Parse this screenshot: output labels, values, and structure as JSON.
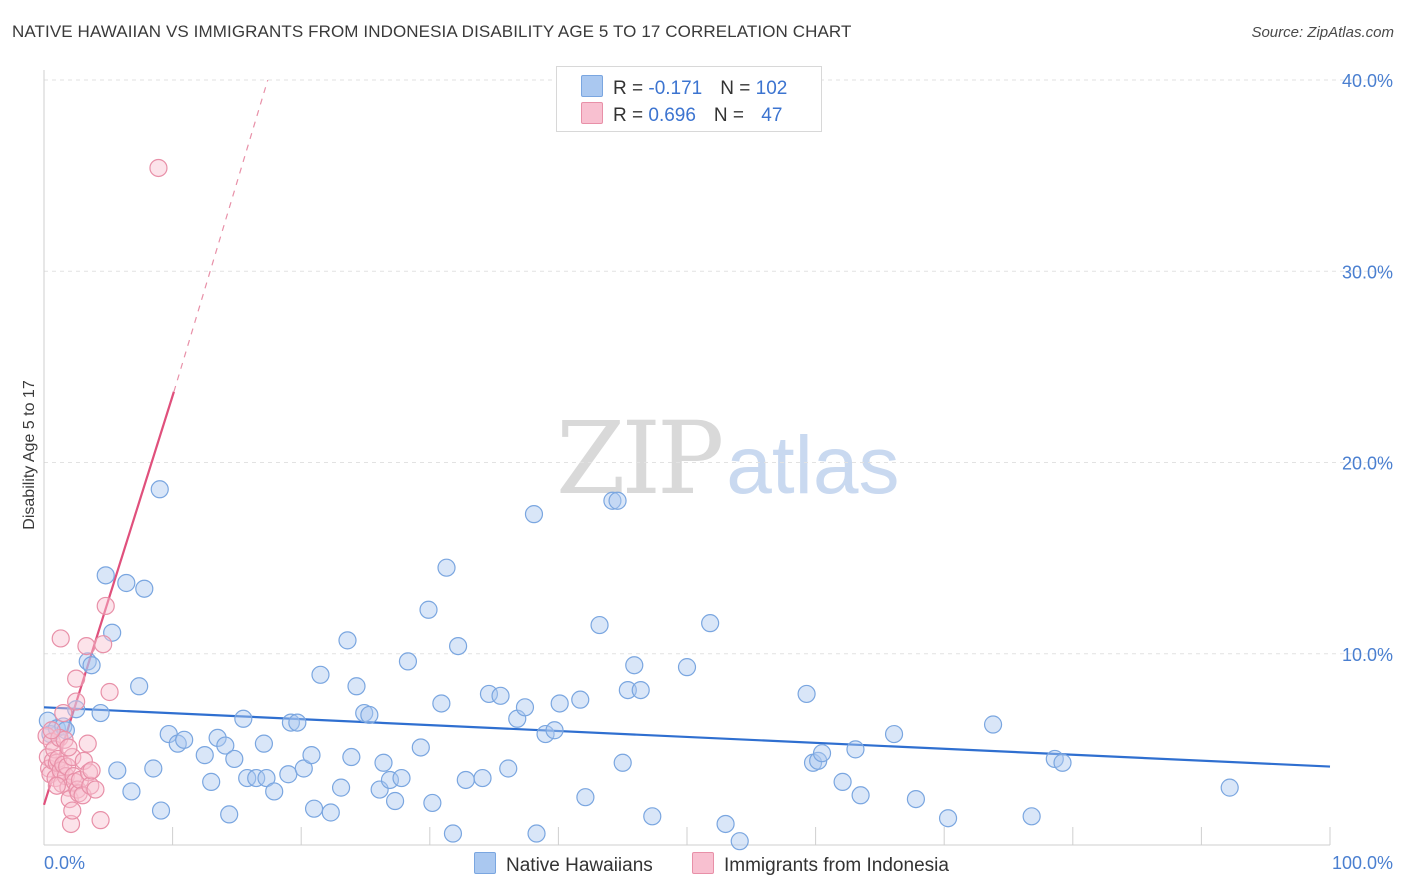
{
  "title": "NATIVE HAWAIIAN VS IMMIGRANTS FROM INDONESIA DISABILITY AGE 5 TO 17 CORRELATION CHART",
  "source": "Source: ZipAtlas.com",
  "watermark": {
    "zip": "ZIP",
    "atlas": "atlas"
  },
  "legend_top": [
    {
      "r_label": "R = ",
      "r_value": "-0.171",
      "n_label": "N = ",
      "n_value": "102",
      "color": "#aac8f0",
      "border": "#7aa6e0"
    },
    {
      "r_label": "R = ",
      "r_value": "0.696",
      "n_label": "N = ",
      "n_value": "47",
      "color": "#f8c0d0",
      "border": "#e890a8"
    }
  ],
  "chart_data": {
    "type": "scatter",
    "title": "NATIVE HAWAIIAN VS IMMIGRANTS FROM INDONESIA DISABILITY AGE 5 TO 17 CORRELATION CHART",
    "xlabel": "",
    "ylabel": "Disability Age 5 to 17",
    "xlim": [
      0,
      100
    ],
    "ylim": [
      0,
      41
    ],
    "x_tick_labels": [
      "0.0%",
      "100.0%"
    ],
    "y_ticks": [
      10,
      20,
      30,
      40
    ],
    "y_tick_labels": [
      "10.0%",
      "20.0%",
      "30.0%",
      "40.0%"
    ],
    "grid": true,
    "legend_position": "bottom-center",
    "series": [
      {
        "name": "Native Hawaiians",
        "color": "#7aa6e0",
        "fill": "#aac8f0",
        "trend": {
          "x0": 0,
          "y0": 7.2,
          "x1": 100,
          "y1": 4.1,
          "color": "#2f6fd0"
        },
        "points": [
          [
            0.3,
            6.5
          ],
          [
            0.5,
            5.8
          ],
          [
            1.0,
            6.1
          ],
          [
            1.5,
            6.2
          ],
          [
            1.7,
            6.0
          ],
          [
            2.5,
            7.1
          ],
          [
            3.4,
            9.6
          ],
          [
            3.7,
            9.4
          ],
          [
            4.4,
            6.9
          ],
          [
            4.8,
            14.1
          ],
          [
            5.3,
            11.1
          ],
          [
            5.7,
            3.9
          ],
          [
            6.4,
            13.7
          ],
          [
            6.8,
            2.8
          ],
          [
            7.4,
            8.3
          ],
          [
            7.8,
            13.4
          ],
          [
            8.5,
            4.0
          ],
          [
            9.0,
            18.6
          ],
          [
            9.7,
            5.8
          ],
          [
            10.4,
            5.3
          ],
          [
            10.9,
            5.5
          ],
          [
            12.5,
            4.7
          ],
          [
            13.0,
            3.3
          ],
          [
            13.5,
            5.6
          ],
          [
            14.1,
            5.2
          ],
          [
            14.4,
            1.6
          ],
          [
            14.8,
            4.5
          ],
          [
            15.5,
            6.6
          ],
          [
            15.8,
            3.5
          ],
          [
            16.5,
            3.5
          ],
          [
            17.1,
            5.3
          ],
          [
            17.3,
            3.5
          ],
          [
            17.9,
            2.8
          ],
          [
            19.0,
            3.7
          ],
          [
            19.2,
            6.4
          ],
          [
            19.7,
            6.4
          ],
          [
            20.2,
            4.0
          ],
          [
            20.8,
            4.7
          ],
          [
            21.0,
            1.9
          ],
          [
            21.5,
            8.9
          ],
          [
            22.3,
            1.7
          ],
          [
            23.1,
            3.0
          ],
          [
            23.6,
            10.7
          ],
          [
            23.9,
            4.6
          ],
          [
            24.3,
            8.3
          ],
          [
            24.9,
            6.9
          ],
          [
            25.3,
            6.8
          ],
          [
            26.1,
            2.9
          ],
          [
            26.4,
            4.3
          ],
          [
            26.9,
            3.4
          ],
          [
            27.3,
            2.3
          ],
          [
            27.8,
            3.5
          ],
          [
            28.3,
            9.6
          ],
          [
            29.3,
            5.1
          ],
          [
            29.9,
            12.3
          ],
          [
            30.2,
            2.2
          ],
          [
            30.9,
            7.4
          ],
          [
            31.3,
            14.5
          ],
          [
            31.8,
            0.6
          ],
          [
            32.2,
            10.4
          ],
          [
            32.8,
            3.4
          ],
          [
            34.1,
            3.5
          ],
          [
            34.6,
            7.9
          ],
          [
            35.5,
            7.8
          ],
          [
            36.1,
            4.0
          ],
          [
            36.8,
            6.6
          ],
          [
            37.4,
            7.2
          ],
          [
            38.1,
            17.3
          ],
          [
            38.3,
            0.6
          ],
          [
            39.0,
            5.8
          ],
          [
            39.7,
            6.0
          ],
          [
            40.1,
            7.4
          ],
          [
            41.7,
            7.6
          ],
          [
            42.1,
            2.5
          ],
          [
            43.2,
            11.5
          ],
          [
            44.2,
            18.0
          ],
          [
            44.6,
            18.0
          ],
          [
            45.0,
            4.3
          ],
          [
            45.4,
            8.1
          ],
          [
            45.9,
            9.4
          ],
          [
            46.4,
            8.1
          ],
          [
            47.3,
            1.5
          ],
          [
            50.0,
            9.3
          ],
          [
            51.8,
            11.6
          ],
          [
            53.0,
            1.1
          ],
          [
            54.1,
            0.2
          ],
          [
            59.3,
            7.9
          ],
          [
            59.8,
            4.3
          ],
          [
            60.2,
            4.4
          ],
          [
            60.5,
            4.8
          ],
          [
            62.1,
            3.3
          ],
          [
            63.1,
            5.0
          ],
          [
            63.5,
            2.6
          ],
          [
            66.1,
            5.8
          ],
          [
            67.8,
            2.4
          ],
          [
            70.3,
            1.4
          ],
          [
            73.8,
            6.3
          ],
          [
            76.8,
            1.5
          ],
          [
            78.6,
            4.5
          ],
          [
            79.2,
            4.3
          ],
          [
            92.2,
            3.0
          ],
          [
            9.1,
            1.8
          ]
        ]
      },
      {
        "name": "Immigrants from Indonesia",
        "color": "#e890a8",
        "fill": "#f8c0d0",
        "trend": {
          "x0": 0,
          "y0": 2.1,
          "x1": 10.1,
          "y1": 23.7,
          "color": "#e0507c"
        },
        "trend_ext": {
          "x0": 10.1,
          "y0": 23.7,
          "x1": 17.4,
          "y1": 40.0
        },
        "points": [
          [
            0.2,
            5.7
          ],
          [
            0.3,
            4.6
          ],
          [
            0.4,
            4.0
          ],
          [
            0.5,
            3.7
          ],
          [
            0.6,
            5.4
          ],
          [
            0.7,
            4.4
          ],
          [
            0.8,
            5.0
          ],
          [
            0.9,
            3.5
          ],
          [
            1.0,
            4.3
          ],
          [
            1.1,
            4.5
          ],
          [
            1.2,
            5.6
          ],
          [
            1.3,
            3.9
          ],
          [
            1.4,
            3.2
          ],
          [
            1.5,
            6.9
          ],
          [
            1.5,
            4.2
          ],
          [
            1.6,
            5.5
          ],
          [
            1.7,
            3.6
          ],
          [
            1.8,
            4.1
          ],
          [
            1.9,
            3.0
          ],
          [
            2.0,
            2.4
          ],
          [
            2.1,
            1.1
          ],
          [
            2.2,
            4.6
          ],
          [
            2.3,
            3.6
          ],
          [
            2.4,
            3.3
          ],
          [
            2.5,
            8.7
          ],
          [
            2.5,
            7.5
          ],
          [
            2.6,
            2.9
          ],
          [
            2.7,
            2.7
          ],
          [
            2.8,
            3.4
          ],
          [
            3.0,
            2.6
          ],
          [
            3.1,
            4.4
          ],
          [
            3.3,
            10.4
          ],
          [
            3.4,
            5.3
          ],
          [
            3.5,
            3.8
          ],
          [
            3.6,
            3.1
          ],
          [
            3.7,
            3.9
          ],
          [
            4.0,
            2.9
          ],
          [
            4.4,
            1.3
          ],
          [
            4.6,
            10.5
          ],
          [
            4.8,
            12.5
          ],
          [
            5.1,
            8.0
          ],
          [
            8.9,
            35.4
          ],
          [
            1.3,
            10.8
          ],
          [
            0.6,
            6.0
          ],
          [
            1.9,
            5.1
          ],
          [
            2.2,
            1.8
          ],
          [
            1.0,
            3.1
          ]
        ]
      }
    ]
  }
}
